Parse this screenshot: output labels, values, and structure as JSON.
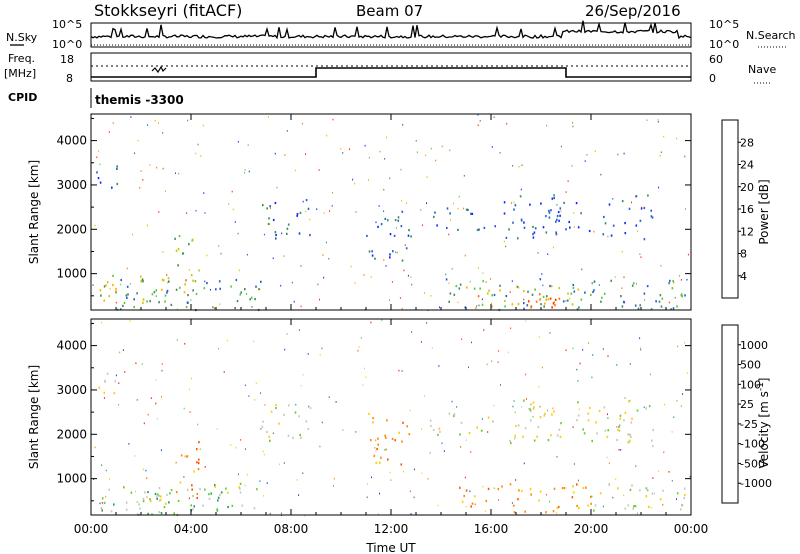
{
  "header": {
    "radar": "Stokkseyri (fitACF)",
    "beam": "Beam 07",
    "date": "26/Sep/2016"
  },
  "panels": {
    "nsky": {
      "left_label": "N.Sky",
      "right_label": "N.Search",
      "left_ticks": [
        "10^5",
        "10^0"
      ],
      "right_ticks": [
        "10^5",
        "10^0"
      ]
    },
    "freq": {
      "left_label": "Freq.",
      "left_unit": "[MHz]",
      "left_ticks": [
        "18",
        "8"
      ],
      "right_label": "Nave",
      "right_ticks": [
        "60",
        "0"
      ]
    },
    "cpid": {
      "label": "CPID",
      "value": "themis -3300"
    }
  },
  "chart_data": [
    {
      "type": "heatmap",
      "title": "",
      "xlabel": "Time UT",
      "ylabel": "Slant Range [km]",
      "x_ticks": [
        "00:00",
        "04:00",
        "08:00",
        "12:00",
        "16:00",
        "20:00",
        "00:00"
      ],
      "x_range_hours": [
        0,
        24
      ],
      "y_ticks": [
        1000,
        2000,
        3000,
        4000
      ],
      "ylim": [
        180,
        4600
      ],
      "colorbar": {
        "label": "Power [dB]",
        "ticks": [
          "4",
          "8",
          "12",
          "16",
          "20",
          "24",
          "28"
        ],
        "colors": [
          "#0a2aff",
          "#2560c8",
          "#3e8c56",
          "#5cc53a",
          "#c8c800",
          "#ffb000",
          "#ff7000",
          "#ff2a00"
        ]
      },
      "echo_regions": [
        {
          "t0": 0.2,
          "t1": 6.9,
          "r0": 200,
          "r1": 900,
          "level": 2
        },
        {
          "t0": 0.3,
          "t1": 3.2,
          "r0": 350,
          "r1": 1000,
          "level": 4
        },
        {
          "t0": 3.3,
          "t1": 4.3,
          "r0": 500,
          "r1": 1900,
          "level": 3
        },
        {
          "t0": 3.5,
          "t1": 4.0,
          "r0": 600,
          "r1": 1100,
          "level": 5
        },
        {
          "t0": 0.2,
          "t1": 1.2,
          "r0": 2900,
          "r1": 3500,
          "level": 1
        },
        {
          "t0": 6.8,
          "t1": 8.8,
          "r0": 1800,
          "r1": 2700,
          "level": 1
        },
        {
          "t0": 11.0,
          "t1": 12.8,
          "r0": 1300,
          "r1": 2500,
          "level": 1
        },
        {
          "t0": 13.5,
          "t1": 16.2,
          "r0": 2000,
          "r1": 2500,
          "level": 1
        },
        {
          "t0": 16.5,
          "t1": 22.5,
          "r0": 1800,
          "r1": 2800,
          "level": 1
        },
        {
          "t0": 14.0,
          "t1": 24.0,
          "r0": 200,
          "r1": 900,
          "level": 2
        },
        {
          "t0": 15.0,
          "t1": 19.5,
          "r0": 250,
          "r1": 750,
          "level": 5
        },
        {
          "t0": 16.5,
          "t1": 18.8,
          "r0": 250,
          "r1": 550,
          "level": 7
        }
      ]
    },
    {
      "type": "heatmap",
      "title": "",
      "xlabel": "Time UT",
      "ylabel": "Slant Range [km]",
      "x_ticks": [
        "00:00",
        "04:00",
        "08:00",
        "12:00",
        "16:00",
        "20:00",
        "00:00"
      ],
      "x_range_hours": [
        0,
        24
      ],
      "y_ticks": [
        1000,
        2000,
        3000,
        4000
      ],
      "ylim": [
        180,
        4600
      ],
      "colorbar": {
        "label": "Velocity [m s",
        "label_superscript": "-1",
        "label_end": "]",
        "ticks": [
          "1000",
          "500",
          "100",
          "25",
          "-25",
          "-100",
          "-500",
          "-1000"
        ],
        "colors": [
          "#1a3ccc",
          "#2a70c0",
          "#2e9a5a",
          "#66cc33",
          "#c8c8c0",
          "#ffcc00",
          "#ff8800",
          "#ff5500",
          "#e81010"
        ]
      },
      "echo_regions": [
        {
          "t0": 0.2,
          "t1": 6.9,
          "r0": 200,
          "r1": 900,
          "level": 3
        },
        {
          "t0": 1.5,
          "t1": 3.2,
          "r0": 250,
          "r1": 900,
          "level": 4
        },
        {
          "t0": 3.3,
          "t1": 4.3,
          "r0": 500,
          "r1": 1900,
          "level": 6
        },
        {
          "t0": 4.5,
          "t1": 6.9,
          "r0": 700,
          "r1": 950,
          "level": 4
        },
        {
          "t0": 0.2,
          "t1": 1.2,
          "r0": 2900,
          "r1": 3500,
          "level": 4
        },
        {
          "t0": 6.8,
          "t1": 8.8,
          "r0": 1800,
          "r1": 2700,
          "level": 4
        },
        {
          "t0": 11.0,
          "t1": 12.8,
          "r0": 1300,
          "r1": 2500,
          "level": 6
        },
        {
          "t0": 13.5,
          "t1": 16.2,
          "r0": 2000,
          "r1": 2500,
          "level": 4
        },
        {
          "t0": 16.5,
          "t1": 22.5,
          "r0": 1800,
          "r1": 2800,
          "level": 4
        },
        {
          "t0": 14.5,
          "t1": 20.0,
          "r0": 250,
          "r1": 900,
          "level": 6
        },
        {
          "t0": 20.0,
          "t1": 24.0,
          "r0": 300,
          "r1": 900,
          "level": 4
        }
      ]
    }
  ]
}
